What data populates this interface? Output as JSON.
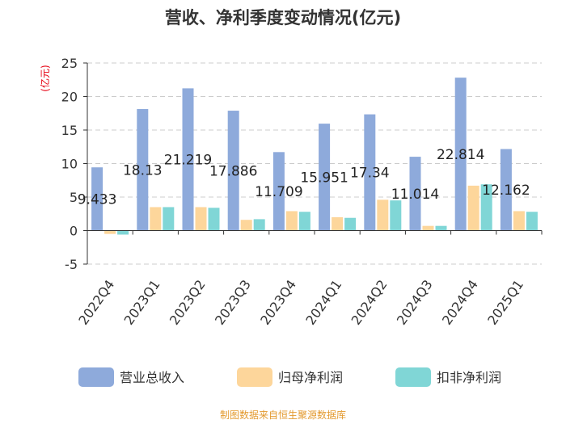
{
  "chart_data": {
    "type": "bar",
    "title": "营收、净利季度变动情况(亿元)",
    "ylabel": "(亿元)",
    "xlabel": "",
    "ylim": [
      -5,
      25
    ],
    "yticks": [
      -5,
      0,
      5,
      10,
      15,
      20,
      25
    ],
    "grid": true,
    "legend_position": "bottom",
    "categories": [
      "2022Q4",
      "2023Q1",
      "2023Q2",
      "2023Q3",
      "2023Q4",
      "2024Q1",
      "2024Q2",
      "2024Q3",
      "2024Q4",
      "2025Q1"
    ],
    "series": [
      {
        "name": "营业总收入",
        "color": "#8eaadb",
        "values": [
          9.433,
          18.13,
          21.219,
          17.886,
          11.709,
          15.951,
          17.34,
          11.014,
          22.814,
          12.162
        ],
        "labels": [
          "9.433",
          "18.13",
          "21.219",
          "17.886",
          "11.709",
          "15.951",
          "17.34",
          "11.014",
          "22.814",
          "12.162"
        ]
      },
      {
        "name": "归母净利润",
        "color": "#fdd69b",
        "values": [
          -0.5,
          3.5,
          3.5,
          1.6,
          2.9,
          2.0,
          4.6,
          0.7,
          6.7,
          2.9
        ]
      },
      {
        "name": "扣非净利润",
        "color": "#80d6d6",
        "values": [
          -0.6,
          3.5,
          3.4,
          1.7,
          2.8,
          1.9,
          4.5,
          0.7,
          6.9,
          2.8
        ]
      }
    ],
    "source": "制图数据来自恒生聚源数据库"
  }
}
